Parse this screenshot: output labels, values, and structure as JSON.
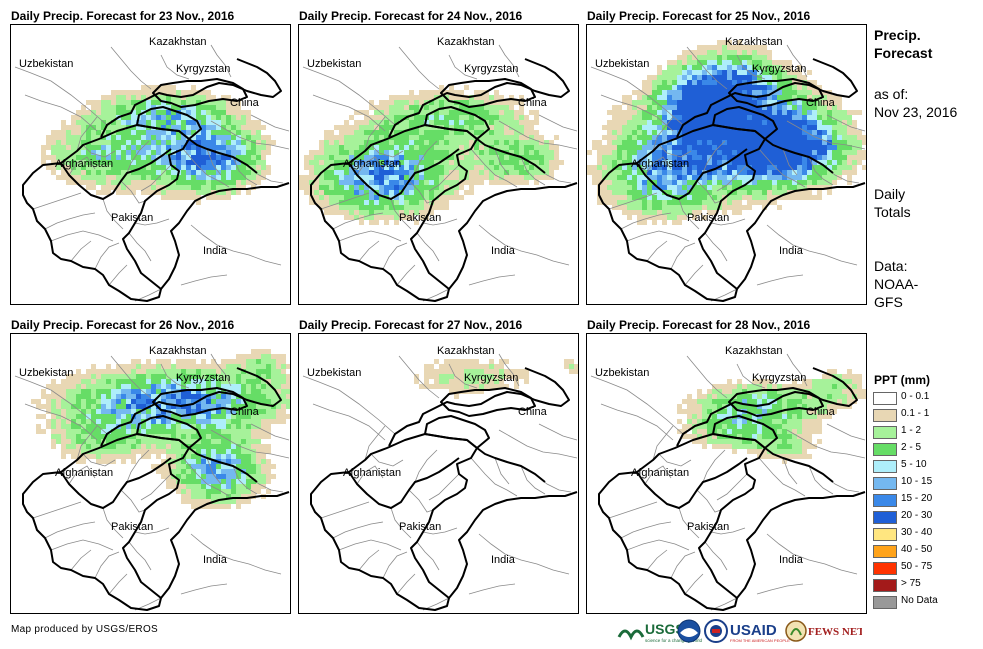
{
  "panels": [
    {
      "title": "Daily Precip. Forecast for 23 Nov., 2016"
    },
    {
      "title": "Daily Precip. Forecast for 24 Nov., 2016"
    },
    {
      "title": "Daily Precip. Forecast for 25 Nov., 2016"
    },
    {
      "title": "Daily Precip. Forecast for 26 Nov., 2016"
    },
    {
      "title": "Daily Precip. Forecast for 27 Nov., 2016"
    },
    {
      "title": "Daily Precip. Forecast for 28 Nov., 2016"
    }
  ],
  "map_labels": {
    "kazakhstan": "Kazakhstan",
    "uzbekistan": "Uzbekistan",
    "kyrgyzstan": "Kyrgyzstan",
    "china": "China",
    "afghanistan": "Afghanistan",
    "pakistan": "Pakistan",
    "india": "India"
  },
  "sidebar": {
    "title_line1": "Precip.",
    "title_line2": "Forecast",
    "asof_line1": "as of:",
    "asof_line2": "Nov 23, 2016",
    "daily_line1": "Daily",
    "daily_line2": "Totals",
    "data_line1": "Data:",
    "data_line2": "NOAA-",
    "data_line3": "GFS"
  },
  "legend": {
    "title": "PPT (mm)",
    "items": [
      {
        "label": "0 - 0.1",
        "color": "#ffffff"
      },
      {
        "label": "0.1 - 1",
        "color": "#e8d7b4"
      },
      {
        "label": "1 - 2",
        "color": "#a6f29a"
      },
      {
        "label": "2 - 5",
        "color": "#66dd66"
      },
      {
        "label": "5 - 10",
        "color": "#aeeefa"
      },
      {
        "label": "10 - 15",
        "color": "#74b8f0"
      },
      {
        "label": "15 - 20",
        "color": "#3a88e8"
      },
      {
        "label": "20 - 30",
        "color": "#1f5fd6"
      },
      {
        "label": "30 - 40",
        "color": "#ffe680"
      },
      {
        "label": "40 - 50",
        "color": "#ffa31a"
      },
      {
        "label": "50 - 75",
        "color": "#ff3300"
      },
      {
        "label": "> 75",
        "color": "#a31a1a"
      },
      {
        "label": "No Data",
        "color": "#999999"
      }
    ]
  },
  "footer": {
    "credit": "Map produced by USGS/EROS"
  },
  "logos": {
    "usgs": "USGS",
    "usgs_tagline": "science for a changing world",
    "usaid": "USAID",
    "usaid_tagline": "FROM THE AMERICAN PEOPLE",
    "fewsnet": "FEWS NET"
  }
}
